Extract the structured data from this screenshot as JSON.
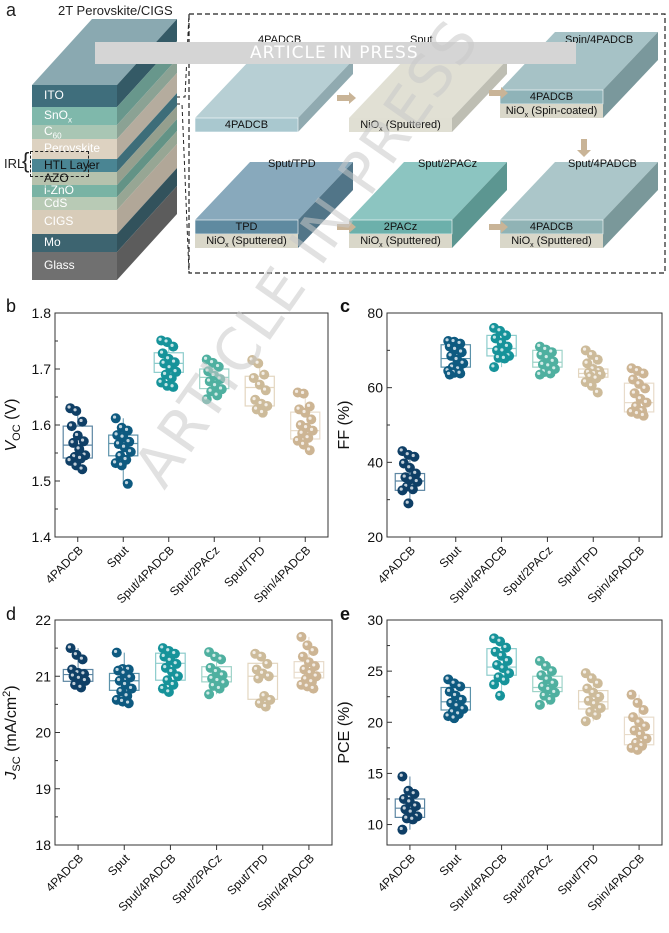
{
  "watermark": "ARTICLE IN PRESS",
  "panel_a": {
    "letter": "a",
    "title": "2T Perovskite/CIGS",
    "irl_label": "IRL",
    "stack_layers": [
      {
        "name": "ITO",
        "color": "#3f6e7c"
      },
      {
        "name": "SnOx",
        "color": "#7fb8ab"
      },
      {
        "name": "C60",
        "color": "#a9c6b4"
      },
      {
        "name": "Perovskite",
        "color": "#ddd2c1"
      },
      {
        "name": "HTL Layer",
        "color": "#4a8593"
      },
      {
        "name": "AZO",
        "color": "#b6c2ad"
      },
      {
        "name": "i-ZnO",
        "color": "#79b3a4"
      },
      {
        "name": "CdS",
        "color": "#b8cab5"
      },
      {
        "name": "CIGS",
        "color": "#d8ccb9"
      },
      {
        "name": "Mo",
        "color": "#3d6470"
      },
      {
        "name": "Glass",
        "color": "#707070"
      }
    ],
    "configs": [
      {
        "title": "4PADCB",
        "top_layer": "4PADCB",
        "bottom_layer": ""
      },
      {
        "title": "Sput",
        "top_layer": "",
        "bottom_layer": "NiOx (Sputtered)"
      },
      {
        "title": "Spin/4PADCB",
        "top_layer": "4PADCB",
        "bottom_layer": "NiOx (Spin-coated)"
      },
      {
        "title": "Sput/TPD",
        "top_layer": "TPD",
        "bottom_layer": "NiOx (Sputtered)"
      },
      {
        "title": "Sput/2PACz",
        "top_layer": "2PACz",
        "bottom_layer": "NiOx (Sputtered)"
      },
      {
        "title": "Sput/4PADCB",
        "top_layer": "4PADCB",
        "bottom_layer": "NiOx (Sputtered)"
      }
    ]
  },
  "colors": {
    "4PADCB": "#0f3f66",
    "Sput": "#0e5a80",
    "Sput/4PADCB": "#16939a",
    "Sput/2PACz": "#4fb0a0",
    "Sput/TPD": "#cdbb9a",
    "Spin/4PADCB": "#cdb594",
    "box_4PADCB": "#5c86a3",
    "box_Sput": "#5b92aa",
    "box_Sput/4PADCB": "#8ccccc",
    "box_Sput/2PACz": "#9ed3c8",
    "box_Sput/TPD": "#e3d6c0",
    "box_Spin/4PADCB": "#e8dccb"
  },
  "chart_data": [
    {
      "id": "b",
      "letter": "b",
      "type": "box-scatter",
      "ylabel": "V_OC (V)",
      "ylim": [
        1.4,
        1.8
      ],
      "yticks": [
        "1.4",
        "1.5",
        "1.6",
        "1.7",
        "1.8"
      ],
      "ytick_values": [
        1.4,
        1.5,
        1.6,
        1.7,
        1.8
      ],
      "categories": [
        "4PADCB",
        "Sput",
        "Sput/4PADCB",
        "Sput/2PACz",
        "Sput/TPD",
        "Spin/4PADCB"
      ],
      "boxes": [
        {
          "q1": 1.541,
          "median": 1.564,
          "q3": 1.598,
          "min": 1.521,
          "max": 1.63
        },
        {
          "q1": 1.545,
          "median": 1.567,
          "q3": 1.582,
          "min": 1.495,
          "max": 1.612
        },
        {
          "q1": 1.694,
          "median": 1.71,
          "q3": 1.729,
          "min": 1.668,
          "max": 1.751
        },
        {
          "q1": 1.665,
          "median": 1.685,
          "q3": 1.7,
          "min": 1.646,
          "max": 1.717
        },
        {
          "q1": 1.634,
          "median": 1.667,
          "q3": 1.687,
          "min": 1.622,
          "max": 1.716
        },
        {
          "q1": 1.575,
          "median": 1.59,
          "q3": 1.623,
          "min": 1.555,
          "max": 1.658
        }
      ],
      "points": [
        [
          1.63,
          1.625,
          1.606,
          1.598,
          1.581,
          1.571,
          1.568,
          1.557,
          1.546,
          1.543,
          1.54,
          1.536,
          1.528,
          1.521
        ],
        [
          1.612,
          1.595,
          1.59,
          1.582,
          1.578,
          1.57,
          1.566,
          1.56,
          1.552,
          1.545,
          1.538,
          1.532,
          1.528,
          1.495
        ],
        [
          1.751,
          1.748,
          1.74,
          1.728,
          1.718,
          1.712,
          1.71,
          1.702,
          1.695,
          1.69,
          1.684,
          1.676,
          1.67,
          1.668
        ],
        [
          1.717,
          1.711,
          1.704,
          1.696,
          1.688,
          1.682,
          1.678,
          1.67,
          1.664,
          1.66,
          1.653,
          1.646
        ],
        [
          1.716,
          1.71,
          1.69,
          1.684,
          1.672,
          1.662,
          1.645,
          1.638,
          1.634,
          1.628,
          1.622
        ],
        [
          1.658,
          1.656,
          1.633,
          1.628,
          1.622,
          1.61,
          1.6,
          1.595,
          1.59,
          1.585,
          1.577,
          1.572,
          1.565,
          1.555
        ]
      ]
    },
    {
      "id": "c",
      "letter": "c",
      "type": "box-scatter",
      "ylabel": "FF (%)",
      "ylim": [
        20,
        80
      ],
      "yticks": [
        "20",
        "40",
        "60",
        "80"
      ],
      "ytick_values": [
        20,
        40,
        60,
        80
      ],
      "categories": [
        "4PADCB",
        "Sput",
        "Sput/4PADCB",
        "Sput/2PACz",
        "Sput/TPD",
        "Spin/4PADCB"
      ],
      "boxes": [
        {
          "q1": 32.5,
          "median": 35.0,
          "q3": 37.0,
          "min": 29.0,
          "max": 43.0
        },
        {
          "q1": 65.5,
          "median": 67.8,
          "q3": 71.5,
          "min": 63.5,
          "max": 72.5
        },
        {
          "q1": 68.5,
          "median": 70.5,
          "q3": 74.0,
          "min": 65.5,
          "max": 76.0
        },
        {
          "q1": 65.5,
          "median": 66.8,
          "q3": 70.0,
          "min": 63.5,
          "max": 71.0
        },
        {
          "q1": 62.8,
          "median": 63.8,
          "q3": 65.0,
          "min": 58.7,
          "max": 70.0
        },
        {
          "q1": 53.5,
          "median": 56.0,
          "q3": 61.2,
          "min": 52.5,
          "max": 65.2
        }
      ],
      "points": [
        [
          43.0,
          42.0,
          41.5,
          39.7,
          38.5,
          37.0,
          36.0,
          35.5,
          34.8,
          33.5,
          32.8,
          32.5,
          29.0
        ],
        [
          72.5,
          72.3,
          71.8,
          71.0,
          70.2,
          69.5,
          68.5,
          67.5,
          66.5,
          65.5,
          65.0,
          64.5,
          64.0,
          63.8,
          63.5
        ],
        [
          76.0,
          75.2,
          74.0,
          73.2,
          72.0,
          71.0,
          70.0,
          69.8,
          68.5,
          68.0,
          67.8,
          65.5
        ],
        [
          71.0,
          70.2,
          69.5,
          68.8,
          68.0,
          67.0,
          66.2,
          65.8,
          65.0,
          64.2,
          63.8,
          63.5
        ],
        [
          70.0,
          68.8,
          67.5,
          66.5,
          65.0,
          64.5,
          64.0,
          63.7,
          63.5,
          63.0,
          62.5,
          61.5,
          60.5,
          58.7
        ],
        [
          65.2,
          64.5,
          63.8,
          62.2,
          61.0,
          59.8,
          58.5,
          57.0,
          56.0,
          55.0,
          53.8,
          53.5,
          53.0,
          52.5
        ]
      ]
    },
    {
      "id": "d",
      "letter": "d",
      "type": "box-scatter",
      "ylabel": "J_SC (mA/cm2)",
      "ylim": [
        18,
        22
      ],
      "yticks": [
        "18",
        "19",
        "20",
        "21",
        "22"
      ],
      "ytick_values": [
        18,
        19,
        20,
        21,
        22
      ],
      "categories": [
        "4PADCB",
        "Sput",
        "Sput/4PADCB",
        "Sput/2PACz",
        "Sput/TPD",
        "Spin/4PADCB"
      ],
      "boxes": [
        {
          "q1": 20.91,
          "median": 21.03,
          "q3": 21.12,
          "min": 20.8,
          "max": 21.5
        },
        {
          "q1": 20.75,
          "median": 20.92,
          "q3": 21.05,
          "min": 20.52,
          "max": 21.42
        },
        {
          "q1": 20.93,
          "median": 21.23,
          "q3": 21.41,
          "min": 20.72,
          "max": 21.5
        },
        {
          "q1": 20.9,
          "median": 20.99,
          "q3": 21.17,
          "min": 20.68,
          "max": 21.43
        },
        {
          "q1": 20.59,
          "median": 21.0,
          "q3": 21.23,
          "min": 20.46,
          "max": 21.4
        },
        {
          "q1": 20.97,
          "median": 21.07,
          "q3": 21.26,
          "min": 20.78,
          "max": 21.7
        }
      ],
      "points": [
        [
          21.5,
          21.38,
          21.3,
          21.12,
          21.06,
          21.04,
          21.0,
          20.96,
          20.92,
          20.85,
          20.8
        ],
        [
          21.42,
          21.13,
          21.12,
          21.1,
          21.05,
          20.98,
          20.92,
          20.85,
          20.78,
          20.73,
          20.65,
          20.58,
          20.55,
          20.52
        ],
        [
          21.5,
          21.45,
          21.4,
          21.35,
          21.28,
          21.22,
          21.15,
          21.08,
          21.0,
          20.93,
          20.85,
          20.78,
          20.72
        ],
        [
          21.43,
          21.35,
          21.3,
          21.15,
          21.08,
          21.02,
          20.96,
          20.92,
          20.88,
          20.83,
          20.78,
          20.68
        ],
        [
          21.4,
          21.35,
          21.22,
          21.12,
          21.05,
          21.0,
          20.96,
          20.65,
          20.58,
          20.52,
          20.46
        ],
        [
          21.7,
          21.55,
          21.45,
          21.35,
          21.25,
          21.18,
          21.12,
          21.06,
          21.0,
          20.95,
          20.9,
          20.85,
          20.82,
          20.78
        ]
      ]
    },
    {
      "id": "e",
      "letter": "e",
      "type": "box-scatter",
      "ylabel": "PCE (%)",
      "ylim": [
        8,
        30
      ],
      "yticks": [
        "10",
        "15",
        "20",
        "25",
        "30"
      ],
      "ytick_values": [
        10,
        15,
        20,
        25,
        30
      ],
      "categories": [
        "4PADCB",
        "Sput",
        "Sput/4PADCB",
        "Sput/2PACz",
        "Sput/TPD",
        "Spin/4PADCB"
      ],
      "boxes": [
        {
          "q1": 10.7,
          "median": 11.6,
          "q3": 12.5,
          "min": 9.5,
          "max": 14.7
        },
        {
          "q1": 21.2,
          "median": 22.0,
          "q3": 23.4,
          "min": 20.4,
          "max": 24.2
        },
        {
          "q1": 24.6,
          "median": 25.4,
          "q3": 27.2,
          "min": 22.6,
          "max": 28.2
        },
        {
          "q1": 23.0,
          "median": 23.4,
          "q3": 24.5,
          "min": 21.7,
          "max": 26.0
        },
        {
          "q1": 21.3,
          "median": 22.0,
          "q3": 23.1,
          "min": 20.1,
          "max": 24.8
        },
        {
          "q1": 17.8,
          "median": 18.8,
          "q3": 20.5,
          "min": 17.3,
          "max": 22.7
        }
      ],
      "points": [
        [
          14.7,
          13.3,
          13.0,
          12.5,
          12.2,
          11.8,
          11.5,
          11.2,
          10.8,
          10.6,
          10.5,
          9.5
        ],
        [
          24.2,
          23.8,
          23.5,
          23.0,
          22.6,
          22.2,
          21.9,
          21.6,
          21.3,
          21.0,
          20.8,
          20.6,
          20.4
        ],
        [
          28.2,
          27.9,
          27.3,
          26.9,
          26.5,
          26.0,
          25.6,
          25.3,
          24.8,
          24.4,
          24.1,
          23.7,
          22.6
        ],
        [
          26.0,
          25.5,
          25.0,
          24.6,
          24.2,
          23.8,
          23.5,
          23.2,
          22.9,
          22.6,
          22.2,
          21.7
        ],
        [
          24.8,
          24.3,
          23.8,
          23.3,
          22.9,
          22.5,
          22.1,
          21.8,
          21.4,
          21.0,
          20.7,
          20.1
        ],
        [
          22.7,
          21.9,
          21.2,
          20.5,
          20.0,
          19.6,
          19.2,
          18.8,
          18.4,
          18.0,
          17.7,
          17.5,
          17.3
        ]
      ]
    }
  ]
}
